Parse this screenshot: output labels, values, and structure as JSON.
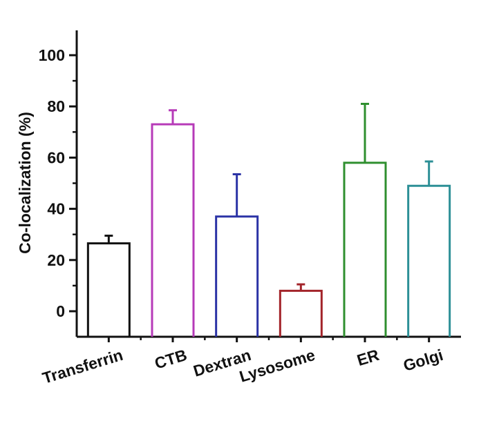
{
  "chart_data": {
    "type": "bar",
    "title": "",
    "xlabel": "",
    "ylabel": "Co-localization (%)",
    "ylim": [
      -10,
      110
    ],
    "yticks": [
      0,
      20,
      40,
      60,
      80,
      100
    ],
    "grid": false,
    "legend": "none",
    "bar_fill": "none",
    "categories": [
      "Transferrin",
      "CTB",
      "Dextran",
      "Lysosome",
      "ER",
      "Golgi"
    ],
    "values": [
      26.5,
      73,
      37,
      8,
      58,
      49
    ],
    "errors": [
      3,
      5.5,
      16.5,
      2.5,
      23,
      9.5
    ],
    "colors": [
      "#111111",
      "#b63ab8",
      "#2b33a6",
      "#a3242a",
      "#2f8f2f",
      "#2c8f96"
    ]
  }
}
